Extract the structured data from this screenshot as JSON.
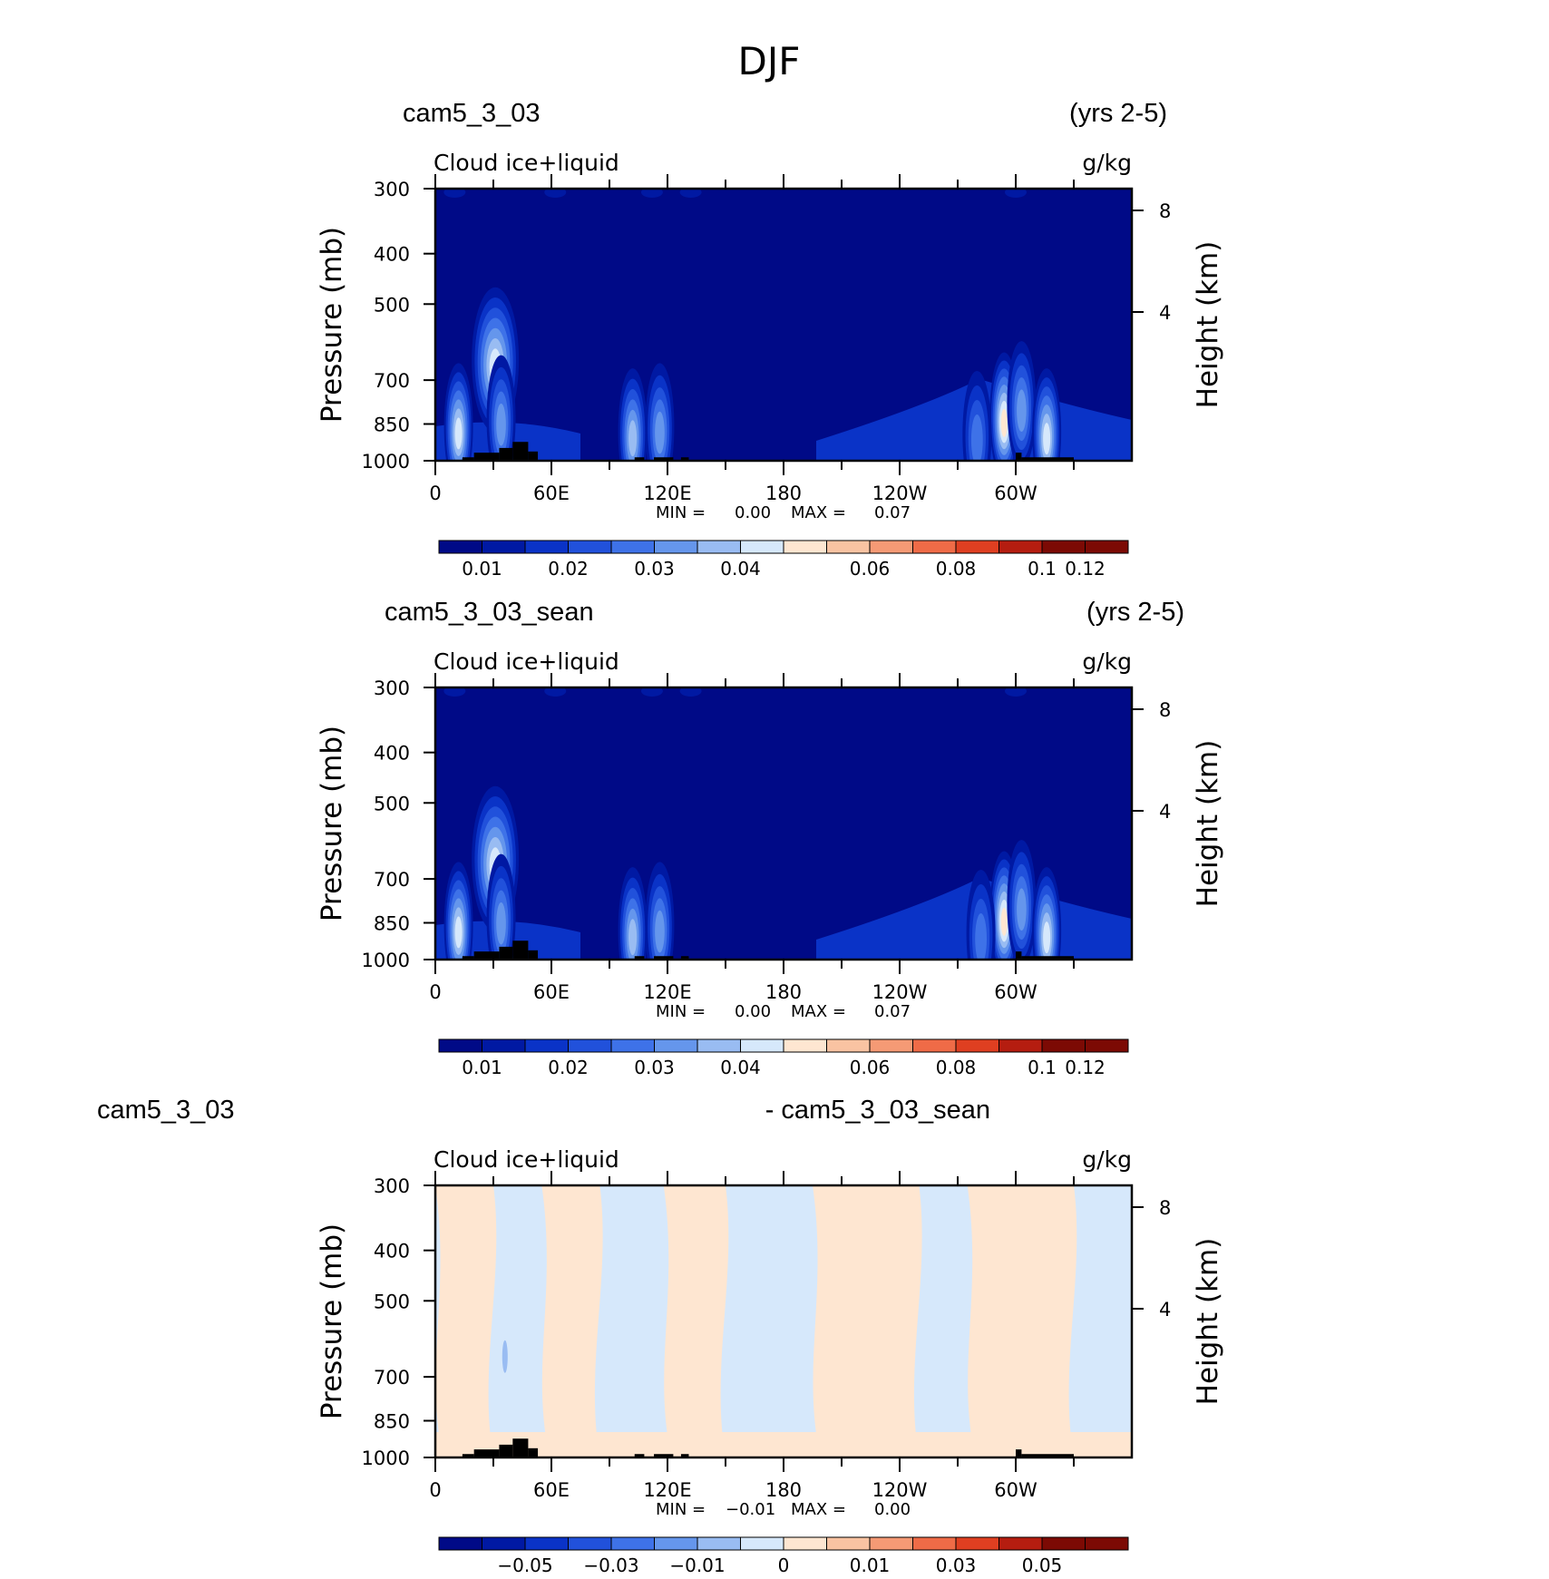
{
  "figure_title": "DJF",
  "colors": {
    "cmap": [
      "#000a87",
      "#0019a3",
      "#0a33c7",
      "#2151db",
      "#3e72e8",
      "#6596ec",
      "#99bcf2",
      "#d6e8fb",
      "#fee6d1",
      "#f9c3a2",
      "#f59a75",
      "#ef6b47",
      "#df3f21",
      "#b51d10",
      "#7c0a04"
    ],
    "terrain": "#000000"
  },
  "chart_data": [
    {
      "type": "contour",
      "case_title": "cam5_3_03",
      "period": "(yrs 2-5)",
      "subtitle_left": "Cloud  ice+liquid",
      "subtitle_right": "g/kg",
      "ylabel": "Pressure  (mb)",
      "ylabel_right": "Height  (km)",
      "x_ticks": [
        "0",
        "60E",
        "120E",
        "180",
        "120W",
        "60W"
      ],
      "y_ticks": [
        "300",
        "400",
        "500",
        "700",
        "850",
        "1000"
      ],
      "y_ticks_right": [
        "8",
        "4"
      ],
      "min_label": "MIN =",
      "min_value": "0.00",
      "max_label": "MAX =",
      "max_value": "0.07",
      "colorbar_labels": [
        "0.01",
        "0.02",
        "0.03",
        "0.04",
        "0.06",
        "0.08",
        "0.1",
        "0.12"
      ],
      "field_background_level": 0,
      "features": [
        {
          "lon": 12,
          "p": 860,
          "level": 7
        },
        {
          "lon": 31,
          "p": 640,
          "level": 7
        },
        {
          "lon": 34,
          "p": 830,
          "level": 5
        },
        {
          "lon": 102,
          "p": 880,
          "level": 6
        },
        {
          "lon": 116,
          "p": 860,
          "level": 5
        },
        {
          "lon": 294,
          "p": 820,
          "level": 8
        },
        {
          "lon": 303,
          "p": 780,
          "level": 5
        },
        {
          "lon": 316,
          "p": 880,
          "level": 7
        },
        {
          "lon": 280,
          "p": 890,
          "level": 4
        }
      ]
    },
    {
      "type": "contour",
      "case_title": "cam5_3_03_sean",
      "period": "(yrs 2-5)",
      "subtitle_left": "Cloud  ice+liquid",
      "subtitle_right": "g/kg",
      "ylabel": "Pressure  (mb)",
      "ylabel_right": "Height  (km)",
      "x_ticks": [
        "0",
        "60E",
        "120E",
        "180",
        "120W",
        "60W"
      ],
      "y_ticks": [
        "300",
        "400",
        "500",
        "700",
        "850",
        "1000"
      ],
      "y_ticks_right": [
        "8",
        "4"
      ],
      "min_label": "MIN =",
      "min_value": "0.00",
      "max_label": "MAX =",
      "max_value": "0.07",
      "colorbar_labels": [
        "0.01",
        "0.02",
        "0.03",
        "0.04",
        "0.06",
        "0.08",
        "0.1",
        "0.12"
      ],
      "field_background_level": 0,
      "features": [
        {
          "lon": 12,
          "p": 860,
          "level": 7
        },
        {
          "lon": 31,
          "p": 640,
          "level": 7
        },
        {
          "lon": 34,
          "p": 830,
          "level": 5
        },
        {
          "lon": 102,
          "p": 880,
          "level": 6
        },
        {
          "lon": 116,
          "p": 860,
          "level": 5
        },
        {
          "lon": 294,
          "p": 820,
          "level": 8
        },
        {
          "lon": 303,
          "p": 780,
          "level": 5
        },
        {
          "lon": 316,
          "p": 880,
          "level": 7
        },
        {
          "lon": 282,
          "p": 890,
          "level": 4
        }
      ]
    },
    {
      "type": "contour",
      "case_title": "cam5_3_03",
      "period": "- cam5_3_03_sean",
      "subtitle_left": "Cloud  ice+liquid",
      "subtitle_right": "g/kg",
      "ylabel": "Pressure  (mb)",
      "ylabel_right": "Height  (km)",
      "x_ticks": [
        "0",
        "60E",
        "120E",
        "180",
        "120W",
        "60W"
      ],
      "y_ticks": [
        "300",
        "400",
        "500",
        "700",
        "850",
        "1000"
      ],
      "y_ticks_right": [
        "8",
        "4"
      ],
      "min_label": "MIN =",
      "min_value": "−0.01",
      "max_label": "MAX =",
      "max_value": "0.00",
      "colorbar_labels": [
        "−0.05",
        "−0.03",
        "−0.01",
        "0",
        "0.01",
        "0.03",
        "0.05"
      ],
      "field_background_level": 7,
      "features": []
    }
  ]
}
